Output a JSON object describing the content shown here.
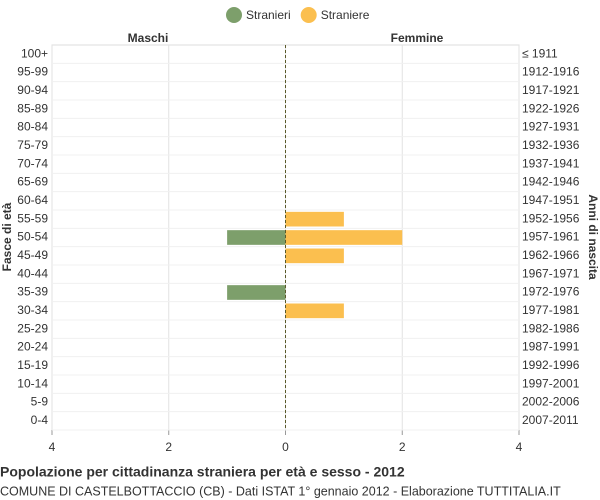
{
  "chart_data": {
    "type": "pyramid",
    "title": "Popolazione per cittadinanza straniera per età e sesso - 2012",
    "subtitle": "COMUNE DI CASTELBOTTACCIO (CB) - Dati ISTAT 1° gennaio 2012 - Elaborazione TUTTITALIA.IT",
    "left_label": "Maschi",
    "right_label": "Femmine",
    "ylabel": "Fasce di età",
    "y2label": "Anni di nascita",
    "legend": "top",
    "categories": [
      "100+",
      "95-99",
      "90-94",
      "85-89",
      "80-84",
      "75-79",
      "70-74",
      "65-69",
      "60-64",
      "55-59",
      "50-54",
      "45-49",
      "40-44",
      "35-39",
      "30-34",
      "25-29",
      "20-24",
      "15-19",
      "10-14",
      "5-9",
      "0-4"
    ],
    "birth_years": [
      "≤ 1911",
      "1912-1916",
      "1917-1921",
      "1922-1926",
      "1927-1931",
      "1932-1936",
      "1937-1941",
      "1942-1946",
      "1947-1951",
      "1952-1956",
      "1957-1961",
      "1962-1966",
      "1967-1971",
      "1972-1976",
      "1977-1981",
      "1982-1986",
      "1987-1991",
      "1992-1996",
      "1997-2001",
      "2002-2006",
      "2007-2011"
    ],
    "series": [
      {
        "name": "Stranieri",
        "color": "#7d9f6b",
        "side": "left",
        "values": [
          0,
          0,
          0,
          0,
          0,
          0,
          0,
          0,
          0,
          0,
          1,
          0,
          0,
          1,
          0,
          0,
          0,
          0,
          0,
          0,
          0
        ]
      },
      {
        "name": "Straniere",
        "color": "#fbbf4f",
        "side": "right",
        "values": [
          0,
          0,
          0,
          0,
          0,
          0,
          0,
          0,
          0,
          1,
          2,
          1,
          0,
          0,
          1,
          0,
          0,
          0,
          0,
          0,
          0
        ]
      }
    ],
    "xlim": [
      -4,
      4
    ],
    "xticks": [
      {
        "value": -4,
        "label": "4"
      },
      {
        "value": -2,
        "label": "2"
      },
      0,
      2,
      4
    ],
    "grid": true
  }
}
